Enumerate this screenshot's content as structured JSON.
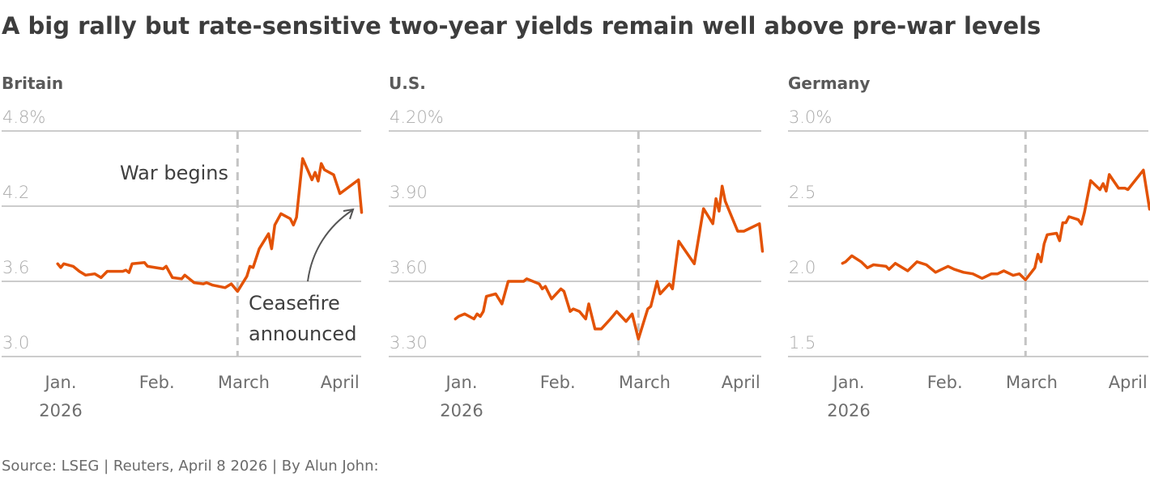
{
  "chart_data": {
    "type": "line",
    "title": "A big rally but rate-sensitive two-year yields remain well above pre-war levels",
    "source": "Source: LSEG | Reuters, April 8 2026 | By Alun John:",
    "x_unit": "day of 2026 (1 = Jan 1)",
    "x_ticks": [
      {
        "day": 1,
        "label": "Jan.",
        "sublabel": "2026"
      },
      {
        "day": 32,
        "label": "Feb."
      },
      {
        "day": 60,
        "label": "March"
      },
      {
        "day": 91,
        "label": "April"
      }
    ],
    "x_range": [
      -1,
      98
    ],
    "line_color": "#e35205",
    "event_day": 58,
    "panels": [
      {
        "name": "Britain",
        "ylim": [
          3.0,
          4.8
        ],
        "y_ticks": [
          3.0,
          3.6,
          4.2,
          4.8
        ],
        "y_tick_labels": [
          "3.0",
          "3.6",
          "4.2",
          "4.8%"
        ],
        "annotations": {
          "war": "War begins",
          "ceasefire_line1": "Ceasefire",
          "ceasefire_line2": "announced"
        },
        "x": [
          0,
          1,
          2,
          5,
          7,
          9,
          12,
          14,
          16,
          21,
          22,
          23,
          24,
          28,
          29,
          34,
          35,
          37,
          40,
          41,
          44,
          47,
          48,
          50,
          54,
          56,
          58,
          61,
          62,
          63,
          65,
          68,
          69,
          70,
          72,
          75,
          76,
          77,
          79,
          82,
          83,
          84,
          85,
          86,
          89,
          91,
          97,
          98
        ],
        "y": [
          3.74,
          3.71,
          3.74,
          3.72,
          3.68,
          3.65,
          3.66,
          3.63,
          3.68,
          3.68,
          3.69,
          3.67,
          3.74,
          3.75,
          3.72,
          3.7,
          3.72,
          3.63,
          3.62,
          3.65,
          3.59,
          3.58,
          3.59,
          3.57,
          3.55,
          3.58,
          3.52,
          3.64,
          3.72,
          3.71,
          3.86,
          3.98,
          3.86,
          4.05,
          4.14,
          4.1,
          4.05,
          4.11,
          4.58,
          4.41,
          4.47,
          4.4,
          4.54,
          4.49,
          4.45,
          4.3,
          4.41,
          4.15
        ]
      },
      {
        "name": "U.S.",
        "ylim": [
          3.3,
          4.2
        ],
        "y_ticks": [
          3.3,
          3.6,
          3.9,
          4.2
        ],
        "y_tick_labels": [
          "3.30",
          "3.60",
          "3.90",
          "4.20%"
        ],
        "x": [
          -1,
          0,
          2,
          5,
          6,
          7,
          8,
          9,
          12,
          14,
          16,
          21,
          22,
          26,
          27,
          28,
          30,
          33,
          34,
          36,
          37,
          39,
          41,
          42,
          44,
          46,
          49,
          51,
          54,
          56,
          58,
          61,
          62,
          64,
          65,
          68,
          69,
          71,
          76,
          79,
          82,
          83,
          84,
          85,
          86,
          90,
          91,
          92,
          97,
          98
        ],
        "y": [
          3.45,
          3.46,
          3.47,
          3.45,
          3.47,
          3.46,
          3.48,
          3.54,
          3.55,
          3.51,
          3.6,
          3.6,
          3.61,
          3.59,
          3.57,
          3.58,
          3.53,
          3.57,
          3.56,
          3.48,
          3.49,
          3.48,
          3.45,
          3.51,
          3.41,
          3.41,
          3.45,
          3.48,
          3.44,
          3.47,
          3.37,
          3.49,
          3.5,
          3.6,
          3.55,
          3.59,
          3.57,
          3.76,
          3.67,
          3.89,
          3.83,
          3.93,
          3.88,
          3.98,
          3.92,
          3.8,
          3.8,
          3.8,
          3.83,
          3.72
        ]
      },
      {
        "name": "Germany",
        "ylim": [
          1.5,
          3.0
        ],
        "y_ticks": [
          1.5,
          2.0,
          2.5,
          3.0
        ],
        "y_tick_labels": [
          "1.5",
          "2.0",
          "2.5",
          "3.0%"
        ],
        "x": [
          -1,
          0,
          2,
          5,
          7,
          9,
          13,
          14,
          16,
          20,
          23,
          26,
          29,
          33,
          35,
          38,
          41,
          44,
          47,
          49,
          51,
          54,
          56,
          58,
          61,
          62,
          63,
          64,
          65,
          68,
          69,
          70,
          71,
          72,
          75,
          76,
          77,
          79,
          82,
          83,
          84,
          85,
          86,
          88,
          90,
          91,
          96,
          98
        ],
        "y": [
          2.12,
          2.13,
          2.17,
          2.13,
          2.09,
          2.11,
          2.1,
          2.08,
          2.12,
          2.07,
          2.13,
          2.11,
          2.06,
          2.1,
          2.08,
          2.06,
          2.05,
          2.02,
          2.05,
          2.05,
          2.07,
          2.04,
          2.05,
          2.01,
          2.09,
          2.18,
          2.13,
          2.25,
          2.31,
          2.32,
          2.27,
          2.39,
          2.39,
          2.43,
          2.41,
          2.38,
          2.46,
          2.67,
          2.61,
          2.65,
          2.6,
          2.71,
          2.68,
          2.62,
          2.62,
          2.61,
          2.74,
          2.48
        ]
      }
    ]
  }
}
